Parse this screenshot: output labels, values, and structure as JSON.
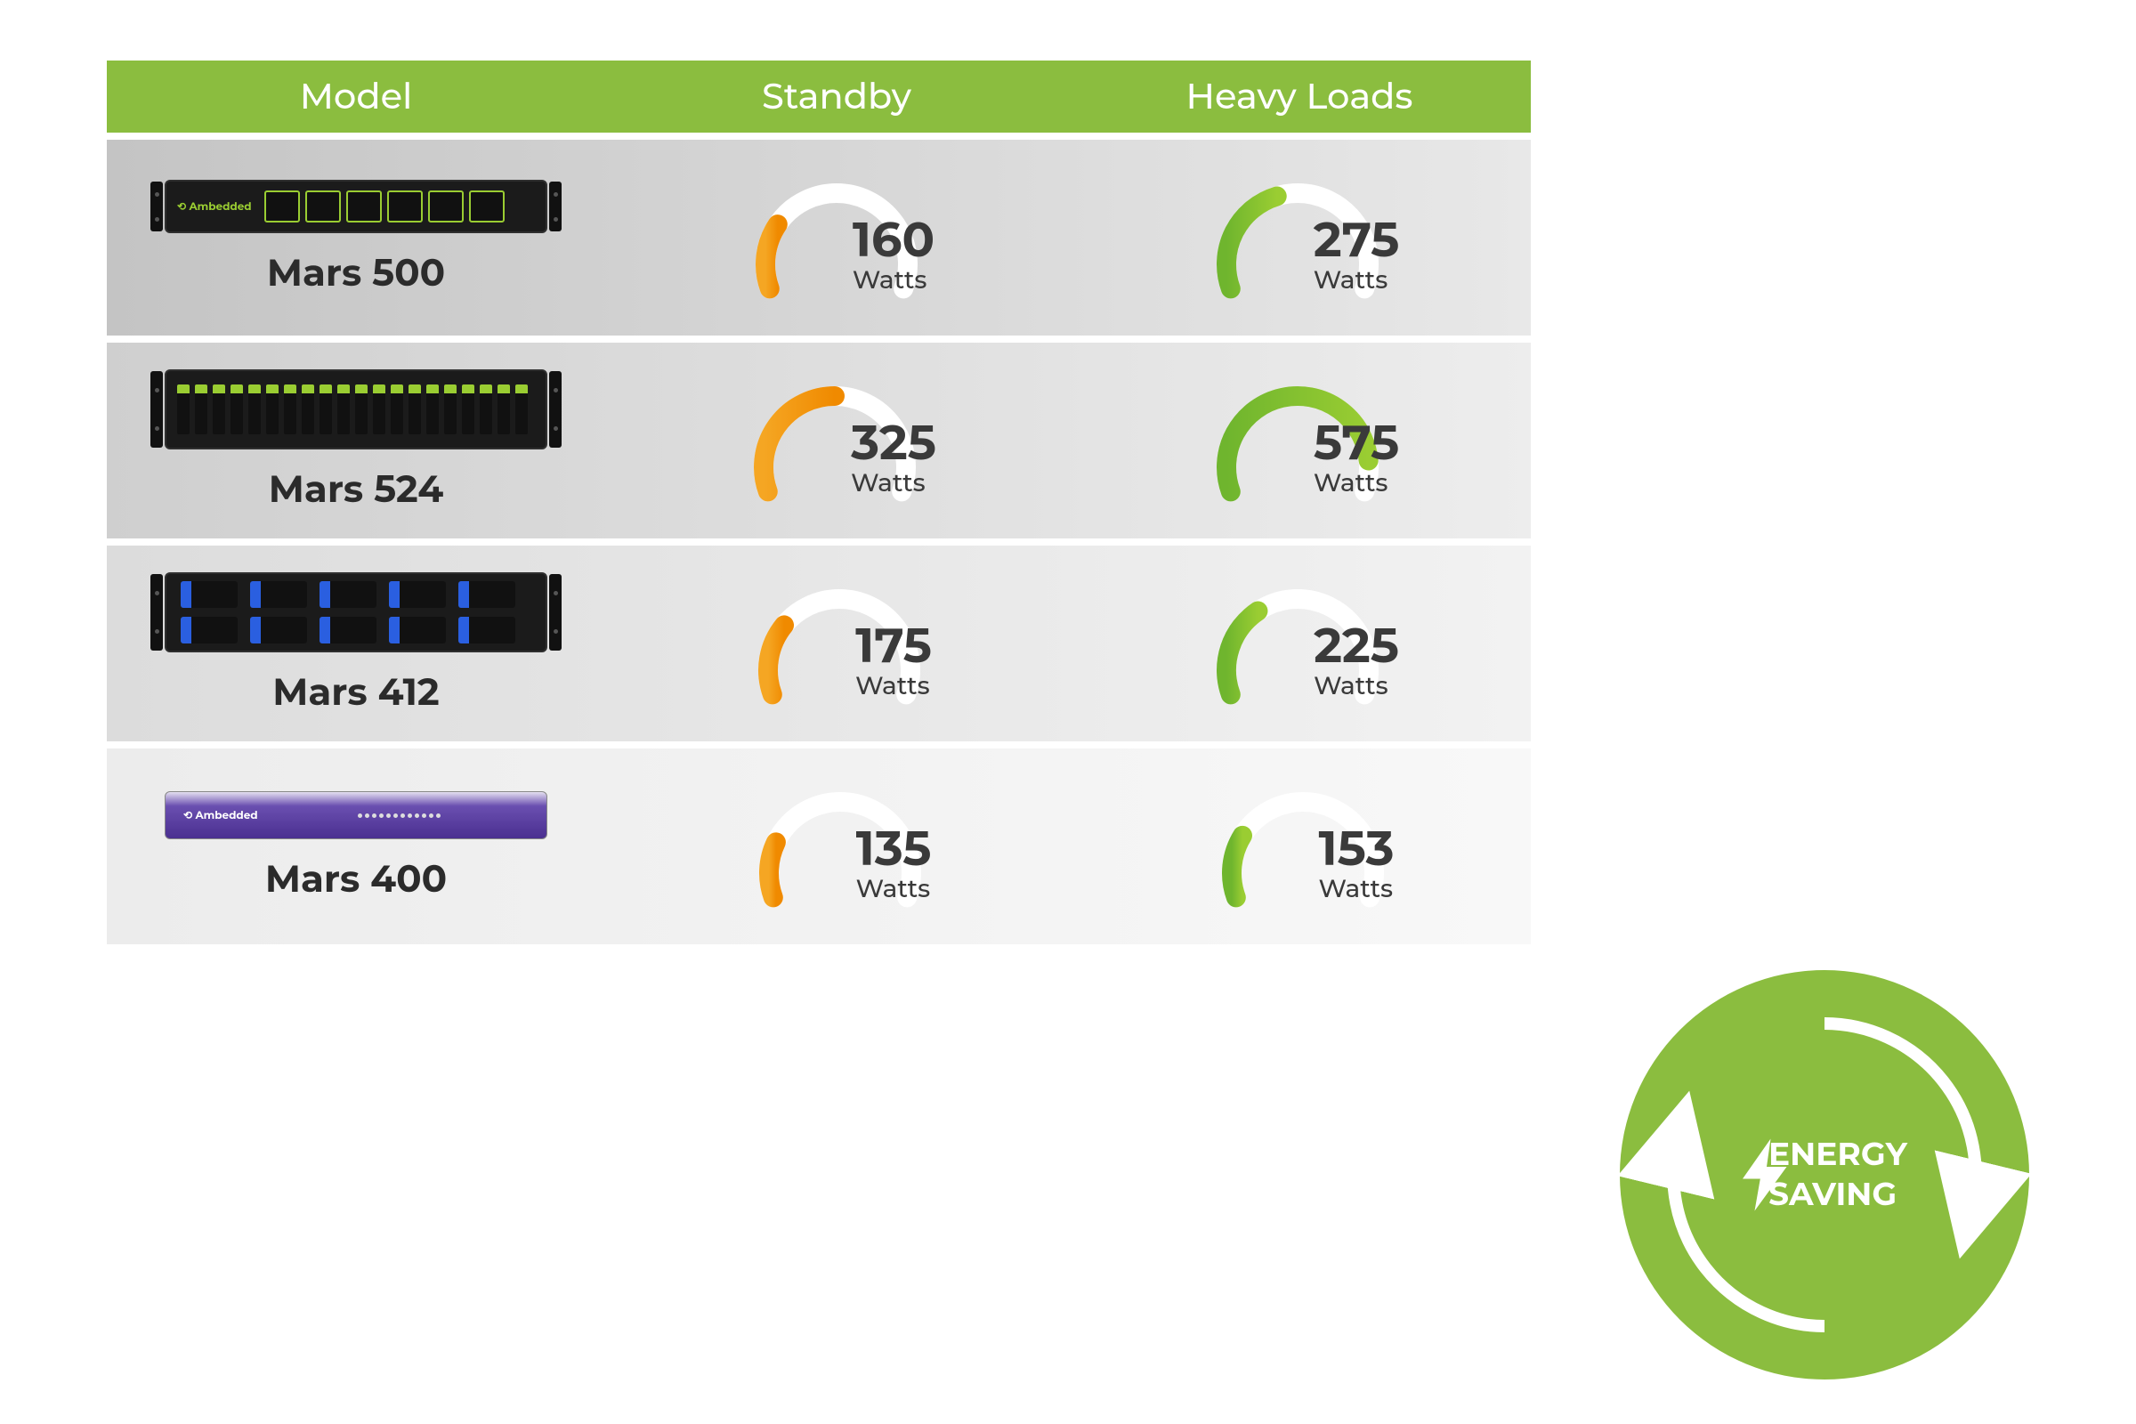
{
  "header": {
    "col_model": "Model",
    "col_standby": "Standby",
    "col_heavy": "Heavy Loads",
    "bg_color": "#8bbd3f",
    "text_color": "#ffffff",
    "fontsize": 40
  },
  "unit_label": "Watts",
  "gauge": {
    "track_color": "#ffffff",
    "standby_color_start": "#f5a623",
    "standby_color_end": "#f08a00",
    "heavy_color_start": "#6fb52e",
    "heavy_color_end": "#9acd32",
    "stroke_width": 22,
    "start_angle": 200,
    "end_angle": -20,
    "max_value": 650
  },
  "rows": [
    {
      "model": "Mars 500",
      "standby": 160,
      "heavy": 275,
      "row_bg_class": "row-bg-0",
      "server_class": "srv-500",
      "server_accent": "#9acd32"
    },
    {
      "model": "Mars 524",
      "standby": 325,
      "heavy": 575,
      "row_bg_class": "row-bg-1",
      "server_class": "srv-524",
      "server_accent": "#9acd32"
    },
    {
      "model": "Mars 412",
      "standby": 175,
      "heavy": 225,
      "row_bg_class": "row-bg-2",
      "server_class": "srv-412",
      "server_accent": "#2a5fe0"
    },
    {
      "model": "Mars 400",
      "standby": 135,
      "heavy": 153,
      "row_bg_class": "row-bg-3",
      "server_class": "srv-400",
      "server_accent": "#6a4fb0"
    }
  ],
  "badge": {
    "line1": "ENERGY",
    "line2": "SAVING",
    "bg_color": "#8bbd3f",
    "text_color": "#ffffff",
    "fontsize": 36
  },
  "value_fontsize": 54,
  "unit_fontsize": 28,
  "model_fontsize": 42,
  "text_color": "#3a3a3a"
}
